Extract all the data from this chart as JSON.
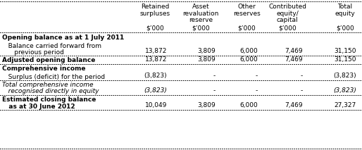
{
  "col_headers_line1": [
    "Retained",
    "Asset",
    "Other",
    "Contributed",
    "Total"
  ],
  "col_headers_line2": [
    "surpluses",
    "revaluation",
    "reserves",
    "equity/",
    "equity"
  ],
  "col_headers_line3": [
    "",
    "reserve",
    "",
    "capital",
    ""
  ],
  "col_headers_line4": [
    "$’000",
    "$’000",
    "$’000",
    "$’000",
    "$’000"
  ],
  "rows": [
    {
      "label1": "Opening balance as at 1 July 2011",
      "label2": "",
      "bold": true,
      "italic": false,
      "values": [
        "",
        "",
        "",
        "",
        ""
      ],
      "underline": false
    },
    {
      "label1": "   Balance carried forward from",
      "label2": "      previous period",
      "bold": false,
      "italic": false,
      "values": [
        "13,872",
        "3,809",
        "6,000",
        "7,469",
        "31,150"
      ],
      "underline": true
    },
    {
      "label1": "Adjusted opening balance",
      "label2": "",
      "bold": true,
      "italic": false,
      "values": [
        "13,872",
        "3,809",
        "6,000",
        "7,469",
        "31,150"
      ],
      "underline": true
    },
    {
      "label1": "Comprehensive income",
      "label2": "",
      "bold": true,
      "italic": false,
      "values": [
        "",
        "",
        "",
        "",
        ""
      ],
      "underline": false
    },
    {
      "label1": "   Surplus (deficit) for the period",
      "label2": "",
      "bold": false,
      "italic": false,
      "values": [
        "(3,823)",
        "-",
        "-",
        "-",
        "(3,823)"
      ],
      "underline": true
    },
    {
      "label1": "Total comprehensive income",
      "label2": "   recognised directly in equity",
      "bold": false,
      "italic": true,
      "values": [
        "(3,823)",
        "-",
        "-",
        "-",
        "(3,823)"
      ],
      "underline": true
    },
    {
      "label1": "Estimated closing balance",
      "label2": "   as at 30 June 2012",
      "bold": true,
      "italic": false,
      "values": [
        "10,049",
        "3,809",
        "6,000",
        "7,469",
        "27,327"
      ],
      "underline": true
    }
  ],
  "background_color": "#ffffff",
  "text_color": "#000000",
  "border_color": "#000000"
}
